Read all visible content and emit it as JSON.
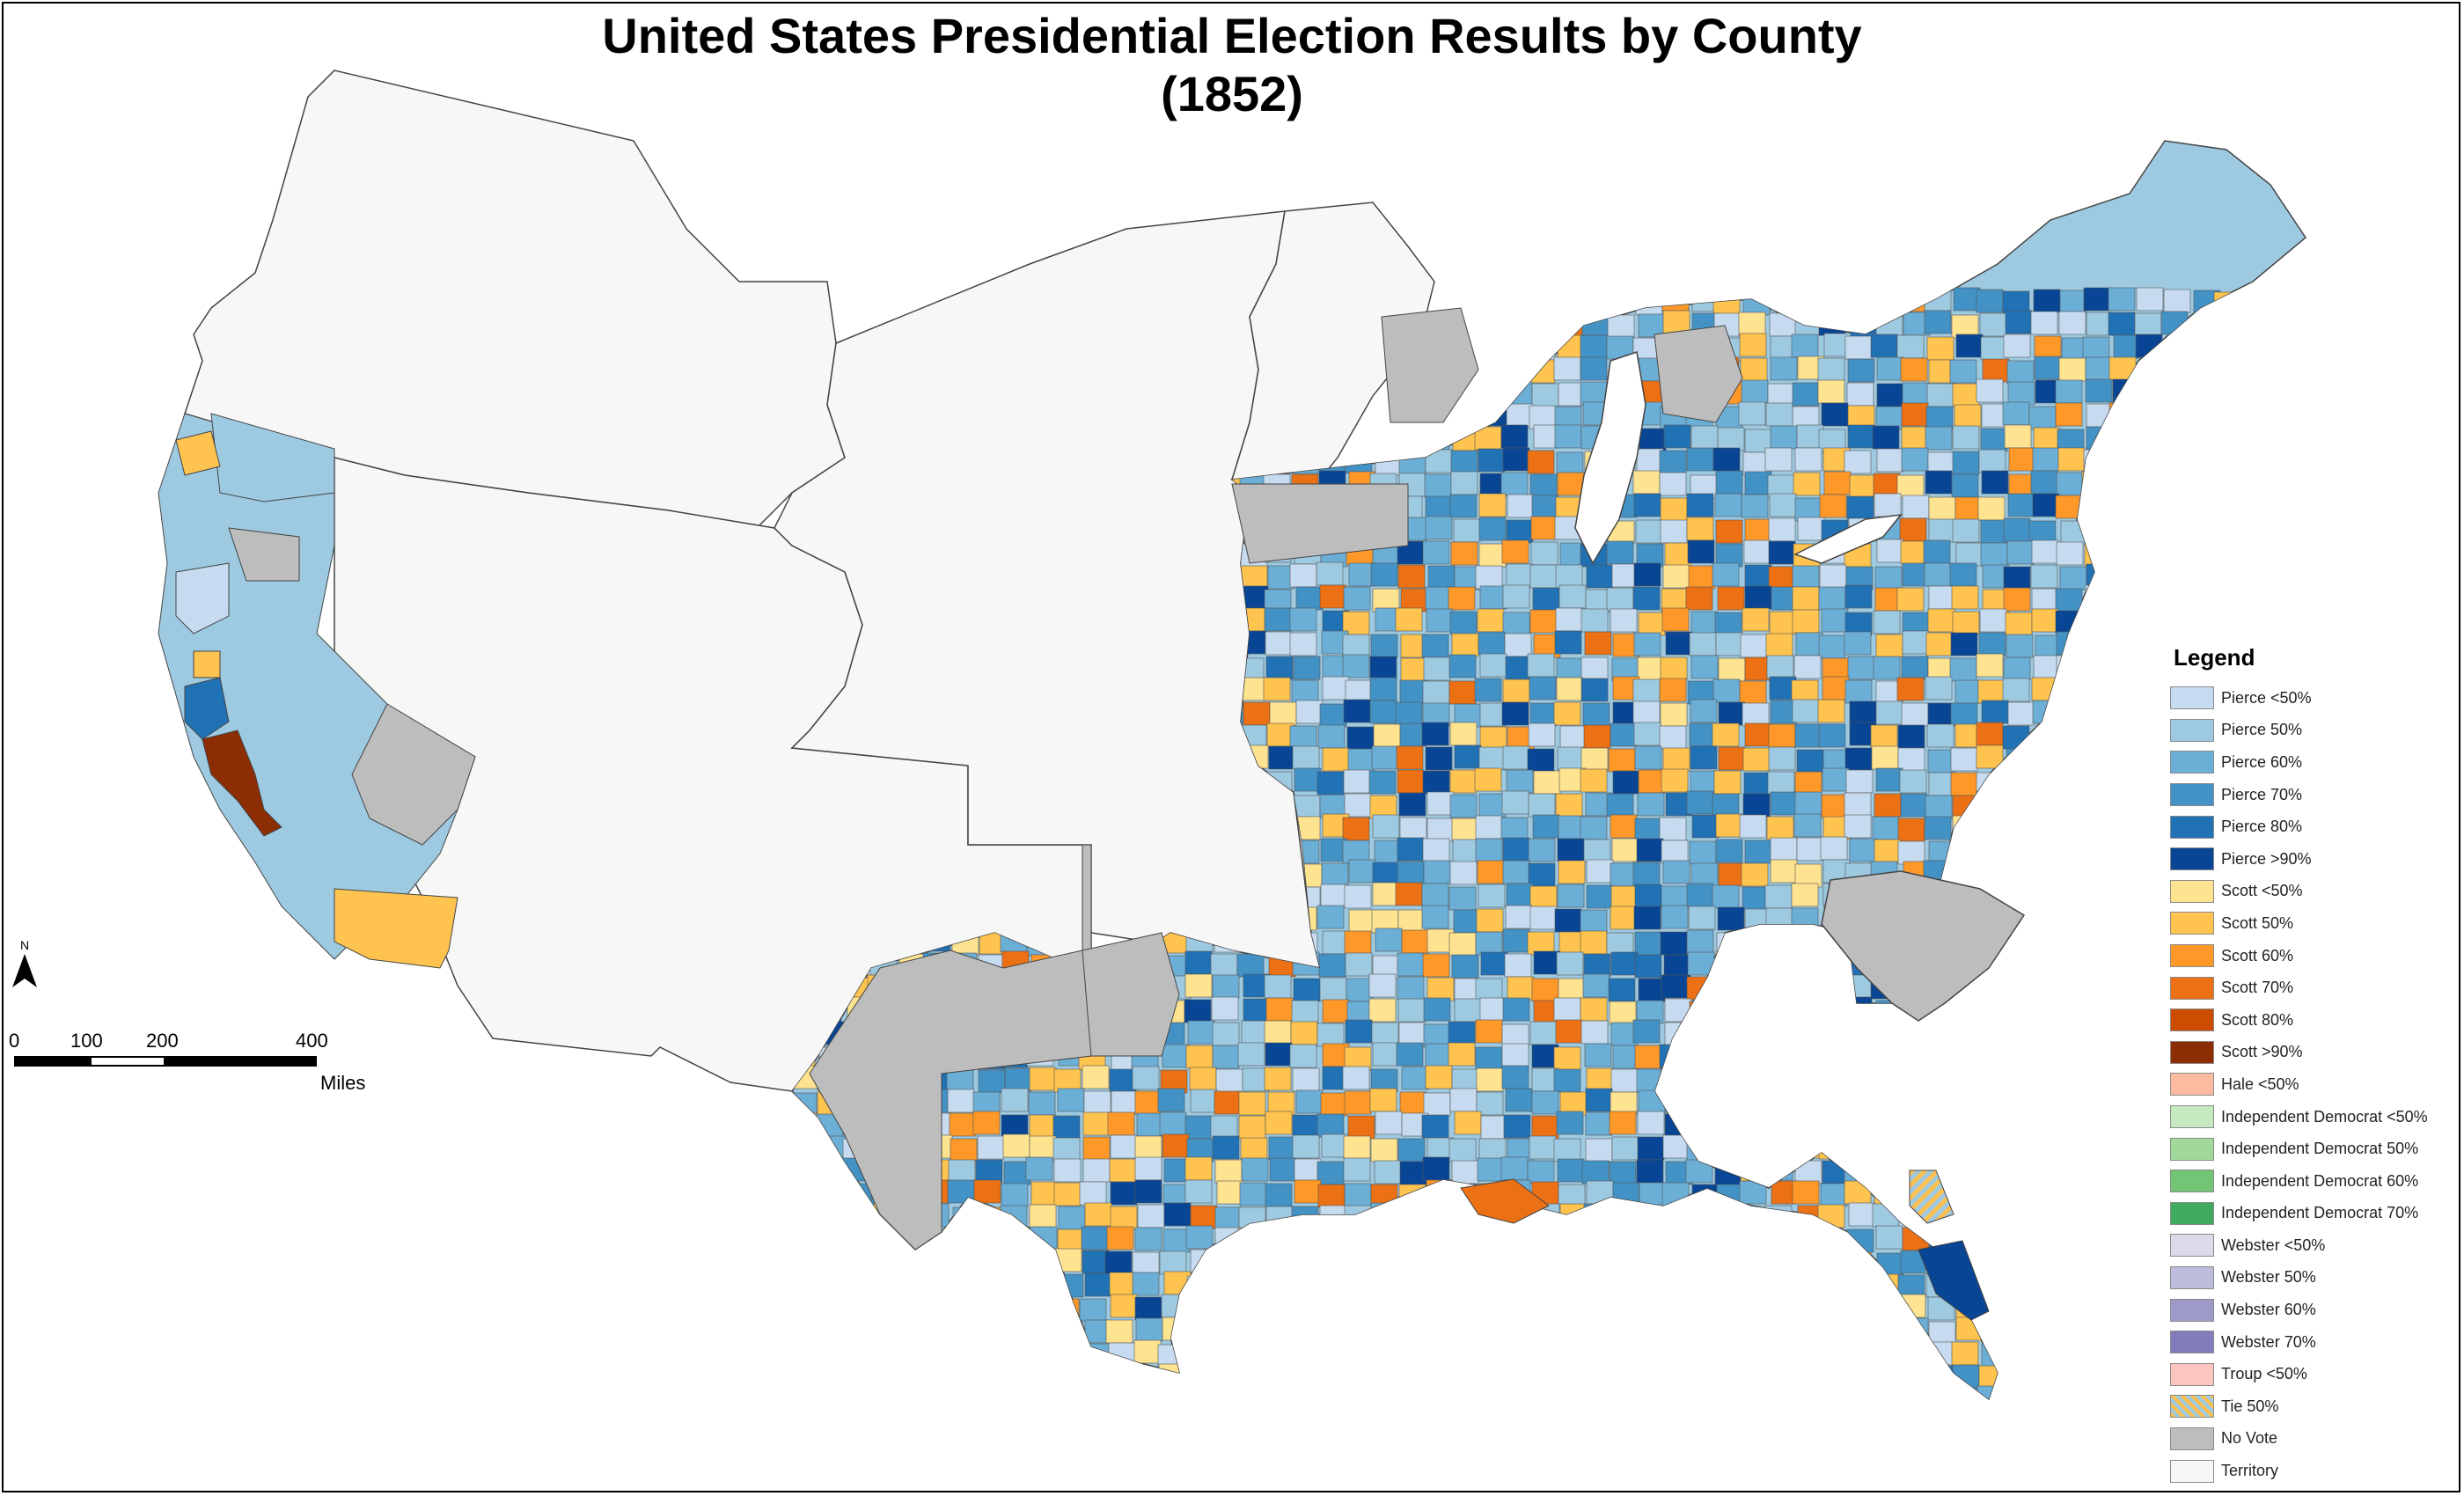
{
  "title": {
    "line1": "United States Presidential Election Results by County",
    "line2": "(1852)"
  },
  "legend": {
    "title": "Legend",
    "items": [
      {
        "label": "Pierce <50%",
        "color": "#c6dbef"
      },
      {
        "label": "Pierce 50%",
        "color": "#9ecae1"
      },
      {
        "label": "Pierce 60%",
        "color": "#6baed6"
      },
      {
        "label": "Pierce 70%",
        "color": "#4292c6"
      },
      {
        "label": "Pierce 80%",
        "color": "#2171b5"
      },
      {
        "label": "Pierce >90%",
        "color": "#084594"
      },
      {
        "label": "Scott <50%",
        "color": "#fee391"
      },
      {
        "label": "Scott 50%",
        "color": "#fec44f"
      },
      {
        "label": "Scott 60%",
        "color": "#fe9929"
      },
      {
        "label": "Scott 70%",
        "color": "#ec7014"
      },
      {
        "label": "Scott 80%",
        "color": "#cc4c02"
      },
      {
        "label": "Scott >90%",
        "color": "#8c2d04"
      },
      {
        "label": "Hale <50%",
        "color": "#fcbba1"
      },
      {
        "label": "Independent Democrat <50%",
        "color": "#c7e9c0"
      },
      {
        "label": "Independent Democrat 50%",
        "color": "#a1d99b"
      },
      {
        "label": "Independent Democrat 60%",
        "color": "#74c476"
      },
      {
        "label": "Independent Democrat 70%",
        "color": "#41ab5d"
      },
      {
        "label": "Webster <50%",
        "color": "#dadaeb"
      },
      {
        "label": "Webster 50%",
        "color": "#bcbddc"
      },
      {
        "label": "Webster 60%",
        "color": "#9e9ac8"
      },
      {
        "label": "Webster 70%",
        "color": "#807dba"
      },
      {
        "label": "Troup <50%",
        "color": "#fcc5c0"
      },
      {
        "label": "Tie 50%",
        "color": "#fdbf4f",
        "pattern": "hatched"
      },
      {
        "label": "No Vote",
        "color": "#bdbdbd"
      },
      {
        "label": "Territory",
        "color": "#f7f7f7"
      }
    ]
  },
  "north_arrow": {
    "label": "N"
  },
  "scale_bar": {
    "labels": [
      "0",
      "100",
      "200",
      "400"
    ],
    "unit": "Miles"
  },
  "colors": {
    "territory": "#f7f7f7",
    "no_vote": "#bdbdbd",
    "border": "#444444"
  }
}
